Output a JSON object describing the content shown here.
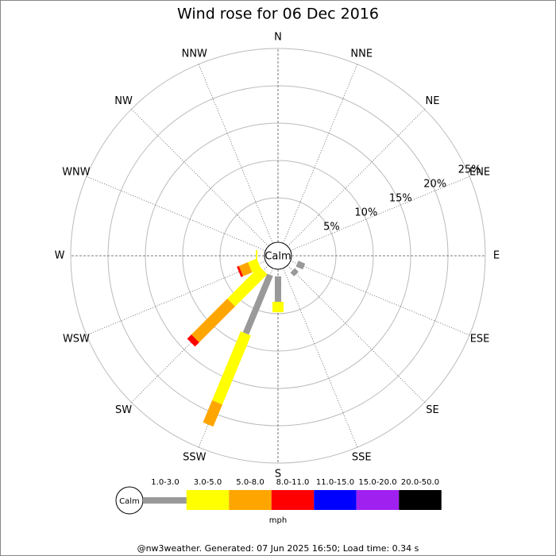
{
  "chart_data": {
    "type": "windrose",
    "title": "Wind rose for 06 Dec 2016",
    "categories": [
      "N",
      "NNE",
      "NE",
      "ENE",
      "E",
      "ESE",
      "SE",
      "SSE",
      "S",
      "SSW",
      "SW",
      "WSW",
      "W",
      "WNW",
      "NW",
      "NNW"
    ],
    "series": [
      {
        "name": "1.0-3.0",
        "color": "#999999",
        "values": [
          0,
          0,
          0,
          0,
          0,
          1.0,
          0.7,
          0,
          3.4,
          8.5,
          0,
          0,
          0,
          0,
          0,
          0
        ]
      },
      {
        "name": "3.0-5.0",
        "color": "#ffff00",
        "values": [
          0,
          0,
          0,
          0,
          0,
          0,
          0,
          0,
          1.4,
          10,
          6.1,
          1.3,
          0.2,
          0,
          0,
          0
        ]
      },
      {
        "name": "5.0-8.0",
        "color": "#ffa500",
        "values": [
          0,
          0,
          0,
          0,
          0,
          0,
          0,
          0,
          0,
          3.2,
          6.8,
          1.3,
          0,
          0,
          0,
          0
        ]
      },
      {
        "name": "8.0-11.0",
        "color": "#ff0000",
        "values": [
          0,
          0,
          0,
          0,
          0,
          0,
          0,
          0,
          0,
          0,
          0.8,
          0.3,
          0,
          0,
          0,
          0
        ]
      },
      {
        "name": "11.0-15.0",
        "color": "#0000ff",
        "values": [
          0,
          0,
          0,
          0,
          0,
          0,
          0,
          0,
          0,
          0,
          0,
          0,
          0,
          0,
          0,
          0
        ]
      },
      {
        "name": "15.0-20.0",
        "color": "#a020f0",
        "values": [
          0,
          0,
          0,
          0,
          0,
          0,
          0,
          0,
          0,
          0,
          0,
          0,
          0,
          0,
          0,
          0
        ]
      },
      {
        "name": "20.0-50.0",
        "color": "#000000",
        "values": [
          0,
          0,
          0,
          0,
          0,
          0,
          0,
          0,
          0,
          0,
          0,
          0,
          0,
          0,
          0,
          0
        ]
      }
    ],
    "ylim": [
      0,
      25
    ],
    "yticks": [
      {
        "value": 5,
        "label": "5%"
      },
      {
        "value": 10,
        "label": "10%"
      },
      {
        "value": 15,
        "label": "15%"
      },
      {
        "value": 20,
        "label": "20%"
      },
      {
        "value": 25,
        "label": "25%"
      }
    ],
    "calm_label": "Calm",
    "units": "mph",
    "footer": "@nw3weather. Generated: 07 Jun 2025 16:50; Load time: 0.34 s"
  }
}
